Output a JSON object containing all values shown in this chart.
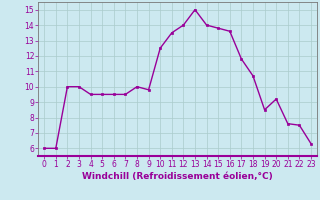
{
  "x": [
    0,
    1,
    2,
    3,
    4,
    5,
    6,
    7,
    8,
    9,
    10,
    11,
    12,
    13,
    14,
    15,
    16,
    17,
    18,
    19,
    20,
    21,
    22,
    23
  ],
  "y": [
    6.0,
    6.0,
    10.0,
    10.0,
    9.5,
    9.5,
    9.5,
    9.5,
    10.0,
    9.8,
    12.5,
    13.5,
    14.0,
    15.0,
    14.0,
    13.8,
    13.6,
    11.8,
    10.7,
    8.5,
    9.2,
    7.6,
    7.5,
    6.3
  ],
  "line_color": "#990099",
  "marker": "s",
  "markersize": 2,
  "linewidth": 1.0,
  "bg_color": "#cce9f0",
  "grid_color": "#aacccc",
  "xlabel": "Windchill (Refroidissement éolien,°C)",
  "xlabel_fontsize": 6.5,
  "xlim": [
    -0.5,
    23.5
  ],
  "ylim": [
    5.5,
    15.5
  ],
  "yticks": [
    6,
    7,
    8,
    9,
    10,
    11,
    12,
    13,
    14,
    15
  ],
  "xticks": [
    0,
    1,
    2,
    3,
    4,
    5,
    6,
    7,
    8,
    9,
    10,
    11,
    12,
    13,
    14,
    15,
    16,
    17,
    18,
    19,
    20,
    21,
    22,
    23
  ],
  "tick_fontsize": 5.5,
  "tick_color": "#990099",
  "axis_color": "#990099",
  "spine_color": "#777777"
}
